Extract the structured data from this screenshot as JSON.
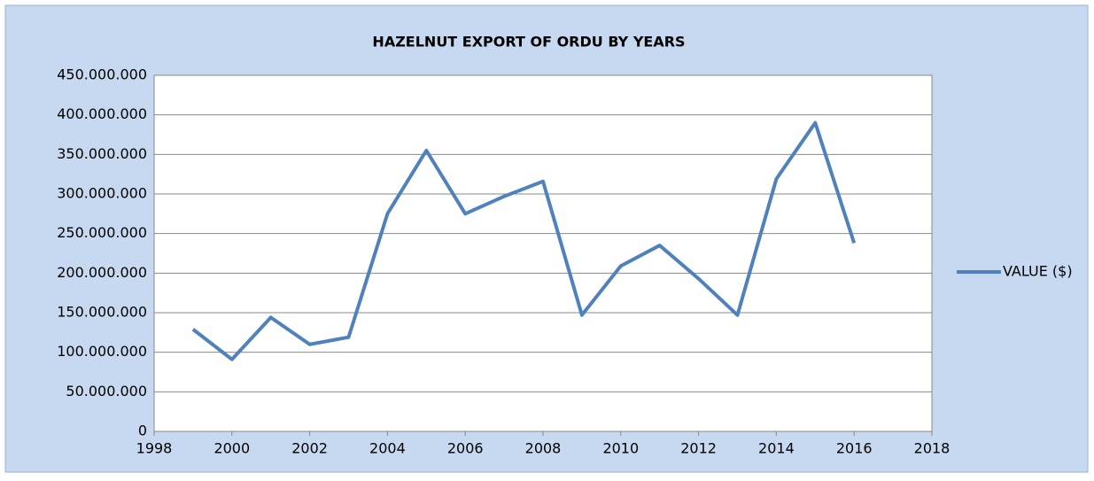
{
  "chart_data": {
    "type": "line",
    "title": "HAZELNUT EXPORT OF ORDU BY YEARS",
    "x": [
      1999,
      2000,
      2001,
      2002,
      2003,
      2004,
      2005,
      2006,
      2007,
      2008,
      2009,
      2010,
      2011,
      2012,
      2013,
      2014,
      2015,
      2016
    ],
    "series": [
      {
        "name": "VALUE ($)",
        "color": "#4f81bd",
        "values": [
          129000000,
          91000000,
          144000000,
          110000000,
          119000000,
          275000000,
          355000000,
          275000000,
          297000000,
          316000000,
          147000000,
          209000000,
          235000000,
          193000000,
          147000000,
          319000000,
          390000000,
          238000000
        ]
      }
    ],
    "xlim": [
      1998,
      2018
    ],
    "xticks": [
      1998,
      2000,
      2002,
      2004,
      2006,
      2008,
      2010,
      2012,
      2014,
      2016,
      2018
    ],
    "ylim": [
      0,
      450000000
    ],
    "yticks": [
      0,
      {
        "value": 50000000,
        "label": "50.000.000"
      },
      {
        "value": 100000000,
        "label": "100.000.000"
      },
      {
        "value": 150000000,
        "label": "150.000.000"
      },
      {
        "value": 200000000,
        "label": "200.000.000"
      },
      {
        "value": 250000000,
        "label": "250.000.000"
      },
      {
        "value": 300000000,
        "label": "300.000.000"
      },
      {
        "value": 350000000,
        "label": "350.000.000"
      },
      {
        "value": 400000000,
        "label": "400.000.000"
      },
      {
        "value": 450000000,
        "label": "450.000.000"
      }
    ],
    "grid": true,
    "legend": "right"
  }
}
